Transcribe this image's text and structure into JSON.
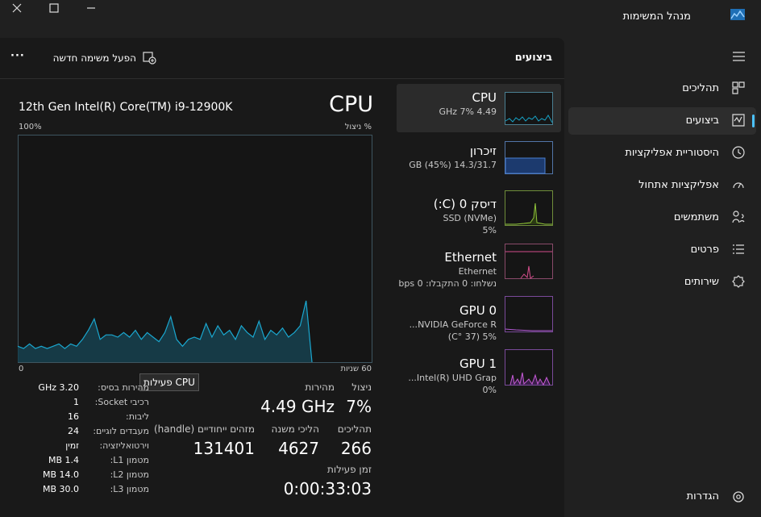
{
  "window": {
    "title": "מנהל המשימות"
  },
  "nav": {
    "items": [
      "תהליכים",
      "ביצועים",
      "היסטוריית אפליקציות",
      "אפליקציות אתחול",
      "משתמשים",
      "פרטים",
      "שירותים"
    ],
    "settings": "הגדרות"
  },
  "toolbar": {
    "title": "ביצועים",
    "run_task": "הפעל משימה חדשה",
    "more": "···"
  },
  "cpu": {
    "model": "12th Gen Intel(R) Core(TM) i9-12900K",
    "heading": "CPU",
    "graph": {
      "y_max_label": "100%",
      "y_label": "% ניצול",
      "x_min_label": "0",
      "x_max_label": "60 שניות",
      "ylim": [
        0,
        100
      ],
      "values": [
        7,
        6,
        8,
        6,
        7,
        6,
        7,
        8,
        6,
        8,
        7,
        10,
        14,
        19,
        10,
        12,
        12,
        11,
        13,
        11,
        14,
        10,
        13,
        11,
        9,
        13,
        20,
        10,
        7,
        10,
        11,
        10,
        17,
        11,
        16,
        12,
        14,
        10,
        16,
        13,
        11,
        18,
        10,
        14,
        12,
        15,
        11,
        13,
        16,
        27,
        0
      ]
    },
    "tooltip": "CPU פעילות",
    "stats": [
      {
        "label": "ניצול",
        "value": "7%"
      },
      {
        "label": "מהירות",
        "value": "4.49 GHz"
      },
      {
        "label": "תהליכים",
        "value": "266"
      },
      {
        "label": "הליכי משנה",
        "value": "4627"
      },
      {
        "label": "מזהים ייחודיים (handle)",
        "value": "131401"
      },
      {
        "label": "זמן פעילות",
        "value": "0:00:33:03"
      }
    ],
    "specs": [
      {
        "label": "מהירות בסיס:",
        "value": "3.20 GHz"
      },
      {
        "label": "רכיבי Socket:",
        "value": "1"
      },
      {
        "label": "ליבות:",
        "value": "16"
      },
      {
        "label": "מעבדים לוגיים:",
        "value": "24"
      },
      {
        "label": "וירטואליזציה:",
        "value": "זמין"
      },
      {
        "label": "מטמון L1:",
        "value": "1.4 MB"
      },
      {
        "label": "מטמון L2:",
        "value": "14.0 MB"
      },
      {
        "label": "מטמון L3:",
        "value": "30.0 MB"
      }
    ]
  },
  "devices": [
    {
      "name": "CPU",
      "lines": [
        "4.49 GHz  7%"
      ]
    },
    {
      "name": "זיכרון",
      "lines": [
        "14.3/31.7 GB (45%)"
      ]
    },
    {
      "name": "דיסק 0 (C:)",
      "lines": [
        "SSD (NVMe)",
        "5%"
      ]
    },
    {
      "name": "Ethernet",
      "lines": [
        "Ethernet",
        "נשלחו: 0 התקבלו: 0 bps"
      ]
    },
    {
      "name": "GPU 0",
      "lines": [
        "NVIDIA GeForce R...",
        "5% (37 °C)"
      ]
    },
    {
      "name": "GPU 1",
      "lines": [
        "Intel(R) UHD Grap...",
        "0%"
      ]
    }
  ]
}
